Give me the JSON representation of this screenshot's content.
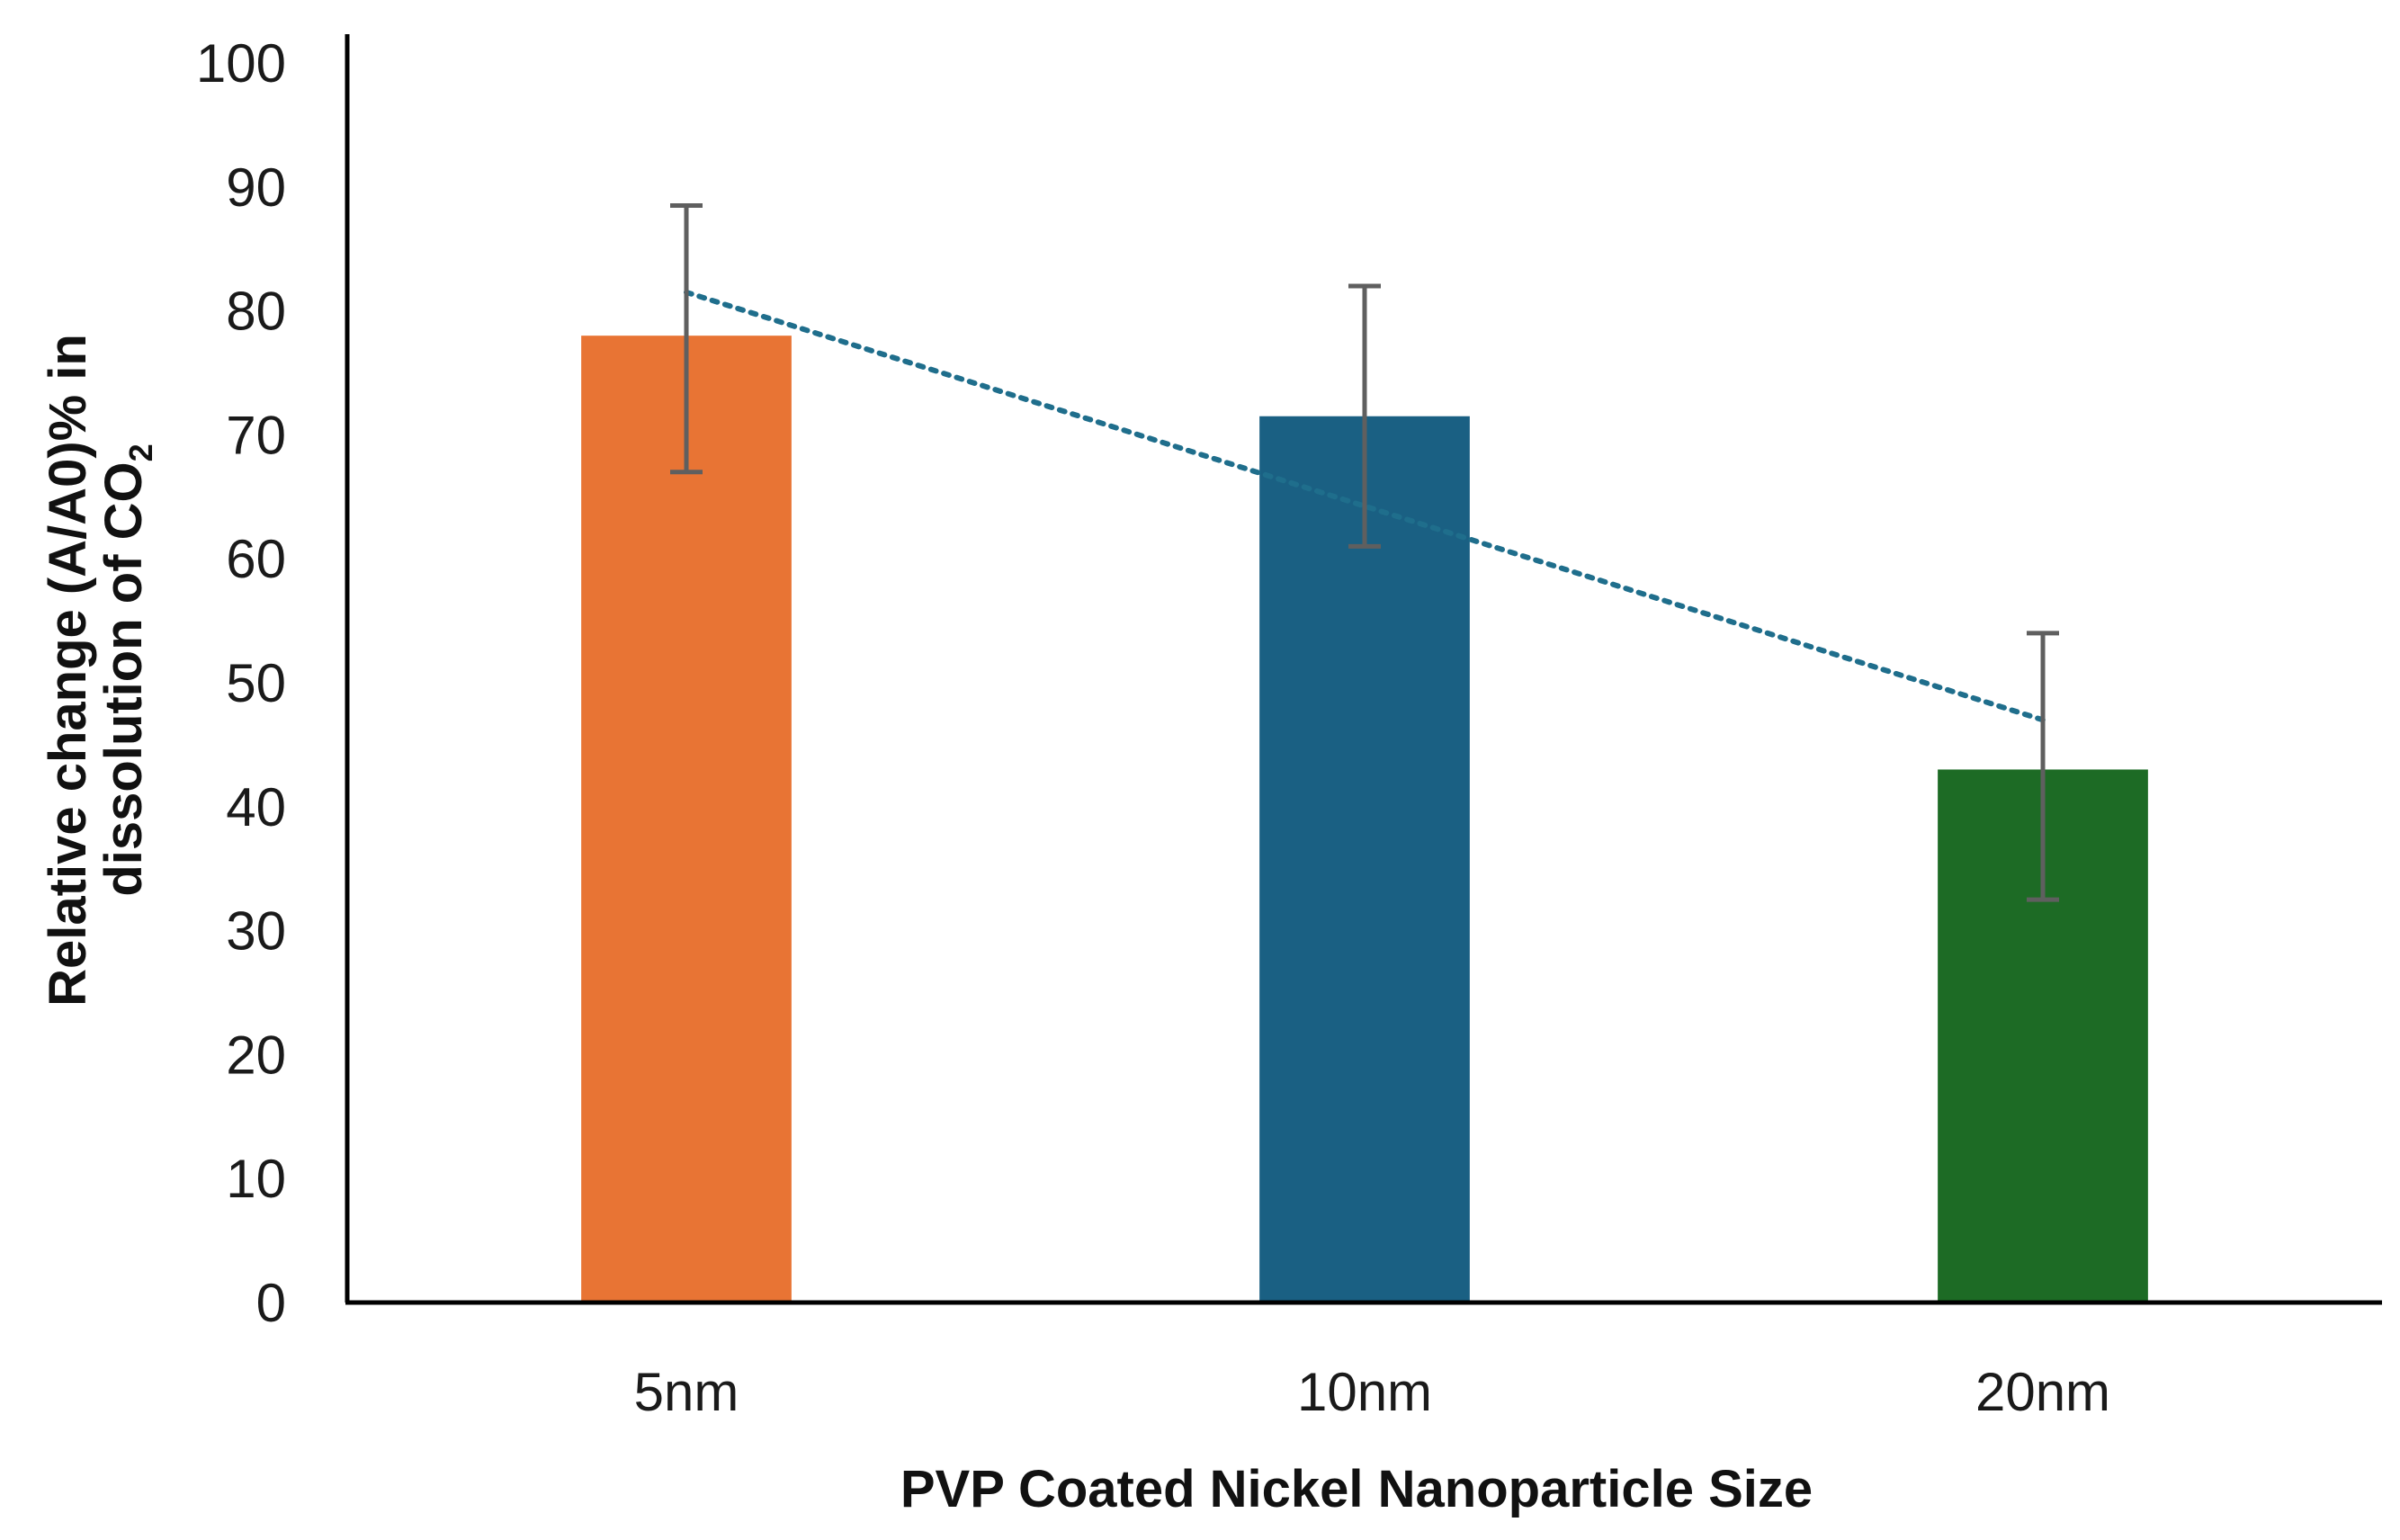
{
  "chart_data": {
    "type": "bar",
    "title": "",
    "categories": [
      "5nm",
      "10nm",
      "20nm"
    ],
    "values": [
      78,
      71.5,
      43
    ],
    "error_bars": [
      {
        "lower": 67,
        "upper": 88.5
      },
      {
        "lower": 61,
        "upper": 82
      },
      {
        "lower": 32.5,
        "upper": 54
      }
    ],
    "bar_colors": [
      "#E87434",
      "#1A6083",
      "#1D6B25"
    ],
    "trendline": {
      "style": "dotted",
      "color": "#1F6E8C",
      "type": "linear",
      "start": 81.5,
      "end": 47
    },
    "xlabel": "PVP Coated Nickel Nanoparticle Size",
    "ylabel": {
      "line1": "Relative change (A/A0)%  in",
      "line2_main": "dissolution of CO",
      "line2_sub": "2"
    },
    "ylim": [
      0,
      100
    ],
    "yticks": [
      0,
      10,
      20,
      30,
      40,
      50,
      60,
      70,
      80,
      90,
      100
    ],
    "grid": false,
    "legend": "none"
  }
}
